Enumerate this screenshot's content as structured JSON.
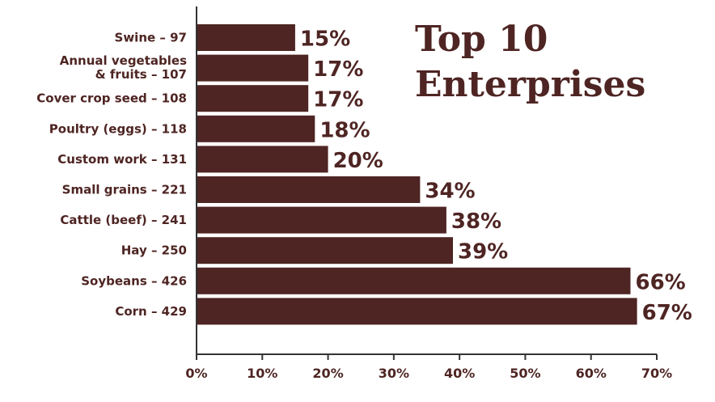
{
  "chart_data": {
    "type": "bar",
    "orientation": "horizontal",
    "title_lines": [
      "Top 10",
      "Enterprises"
    ],
    "categories": [
      [
        "Swine – 97"
      ],
      [
        "Annual vegetables",
        "& fruits – 107"
      ],
      [
        "Cover crop seed – 108"
      ],
      [
        "Poultry (eggs) – 118"
      ],
      [
        "Custom work – 131"
      ],
      [
        "Small grains – 221"
      ],
      [
        "Cattle (beef) – 241"
      ],
      [
        "Hay – 250"
      ],
      [
        "Soybeans – 426"
      ],
      [
        "Corn – 429"
      ]
    ],
    "values": [
      15,
      17,
      17,
      18,
      20,
      34,
      38,
      39,
      66,
      67
    ],
    "value_labels": [
      "15%",
      "17%",
      "17%",
      "18%",
      "20%",
      "34%",
      "38%",
      "39%",
      "66%",
      "67%"
    ],
    "xlim": [
      0,
      70
    ],
    "x_ticks": [
      0,
      10,
      20,
      30,
      40,
      50,
      60,
      70
    ],
    "x_tick_labels": [
      "0%",
      "10%",
      "20%",
      "30%",
      "40%",
      "50%",
      "60%",
      "70%"
    ],
    "grid": false,
    "colors": {
      "bar": "#4e2523",
      "text": "#4e2523",
      "axis": "#333333"
    }
  }
}
